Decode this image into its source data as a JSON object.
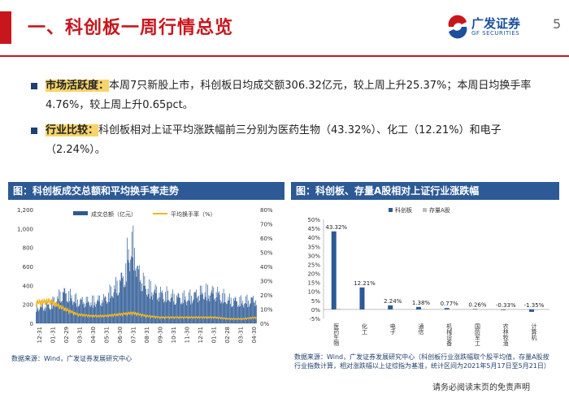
{
  "header": {
    "title": "一、科创板一周行情总览",
    "logo_cn": "广发证券",
    "logo_en": "GF SECURITIES",
    "page_number": "5",
    "brand_color": "#c8161d"
  },
  "bullets": [
    {
      "label": "市场活跃度：",
      "text": "本周7只新股上市，科创板日均成交额306.32亿元，较上周上升25.37%；本周日均换手率4.76%，较上周上升0.65pct。"
    },
    {
      "label": "行业比较：",
      "text": "科创板相对上证平均涨跌幅前三分别为医药生物（43.32%）、化工（12.21%）和电子（2.24%）。"
    }
  ],
  "left_panel": {
    "heading": "图：科创板成交总额和平均换手率走势",
    "source": "数据来源：Wind，广发证券发展研究中心"
  },
  "right_panel": {
    "heading": "图：科创板、存量A股相对上证行业涨跌幅",
    "source": "数据来源：Wind，广发证券发展研究中心（科创板行业涨跌幅取个股平均值，存量A股按行业指数计算，相对涨跌幅以上证综指为基准，统计区间为2021年5月17日至5月21日）"
  },
  "disclaimer": "请务必阅读末页的免责声明",
  "chart_data": [
    {
      "type": "bar",
      "title": "科创板成交总额和平均换手率走势",
      "series": [
        {
          "name": "成交总额（亿元）",
          "kind": "bar",
          "axis": "left",
          "color": "#2d5a96"
        },
        {
          "name": "平均换手率（%）",
          "kind": "line",
          "axis": "right",
          "color": "#f0b623"
        }
      ],
      "left_axis": {
        "ticks": [
          "0",
          "200",
          "400",
          "600",
          "800",
          "1,000",
          "1,200"
        ],
        "range": [
          0,
          1200
        ]
      },
      "right_axis": {
        "ticks": [
          "0%",
          "10%",
          "20%",
          "30%",
          "40%",
          "50%",
          "60%",
          "70%",
          "80%"
        ],
        "range": [
          0,
          80
        ]
      },
      "x_ticks": [
        "12-31",
        "01-31",
        "02-29",
        "03-31",
        "04-30",
        "05-31",
        "06-30",
        "07-31",
        "08-31",
        "09-30",
        "10-31",
        "11-30",
        "12-31",
        "01-31",
        "02-28",
        "03-31",
        "04-30"
      ],
      "x_ticks_placement": "rotated vertical",
      "turnover_levels": [
        {
          "month": "12-31",
          "volume": 170,
          "turnover": 14
        },
        {
          "month": "01-31",
          "volume": 190,
          "turnover": 15
        },
        {
          "month": "02-29",
          "volume": 330,
          "turnover": 10
        },
        {
          "month": "03-31",
          "volume": 240,
          "turnover": 6
        },
        {
          "month": "04-30",
          "volume": 230,
          "turnover": 5
        },
        {
          "month": "05-31",
          "volume": 260,
          "turnover": 5
        },
        {
          "month": "06-30",
          "volume": 420,
          "turnover": 6
        },
        {
          "month": "07-31",
          "volume": 660,
          "turnover": 7
        },
        {
          "month": "08-31",
          "volume": 380,
          "turnover": 5
        },
        {
          "month": "09-30",
          "volume": 320,
          "turnover": 4
        },
        {
          "month": "10-31",
          "volume": 280,
          "turnover": 4
        },
        {
          "month": "11-30",
          "volume": 270,
          "turnover": 4
        },
        {
          "month": "12-31",
          "volume": 330,
          "turnover": 4
        },
        {
          "month": "01-31",
          "volume": 330,
          "turnover": 4
        },
        {
          "month": "02-28",
          "volume": 250,
          "turnover": 3
        },
        {
          "month": "03-31",
          "volume": 230,
          "turnover": 3
        },
        {
          "month": "04-30",
          "volume": 260,
          "turnover": 4
        }
      ]
    },
    {
      "type": "bar",
      "title": "科创板、存量A股相对上证行业涨跌幅",
      "legend": [
        "科创板",
        "存量A股"
      ],
      "legend_colors": [
        "#2d5a96",
        "#bdbdbd"
      ],
      "categories": [
        "医药生物",
        "化工",
        "电子",
        "通信",
        "机械设备",
        "国防军工",
        "农林牧渔",
        "计算机"
      ],
      "series": [
        {
          "name": "科创板",
          "values": [
            43.32,
            12.21,
            2.24,
            1.38,
            0.77,
            0.26,
            -0.33,
            -1.35
          ]
        },
        {
          "name": "存量A股",
          "values": [
            0.4,
            0.2,
            0.1,
            0.3,
            0.2,
            0.1,
            -0.2,
            -0.3
          ]
        }
      ],
      "data_labels": [
        "43.32%",
        "12.21%",
        "2.24%",
        "1.38%",
        "0.77%",
        "0.26%",
        "-0.33%",
        "-1.35%"
      ],
      "y_ticks": [
        "-5%",
        "0%",
        "5%",
        "10%",
        "15%",
        "20%",
        "25%",
        "30%",
        "35%",
        "40%",
        "45%",
        "50%"
      ],
      "ylim": [
        -5,
        50
      ]
    }
  ]
}
